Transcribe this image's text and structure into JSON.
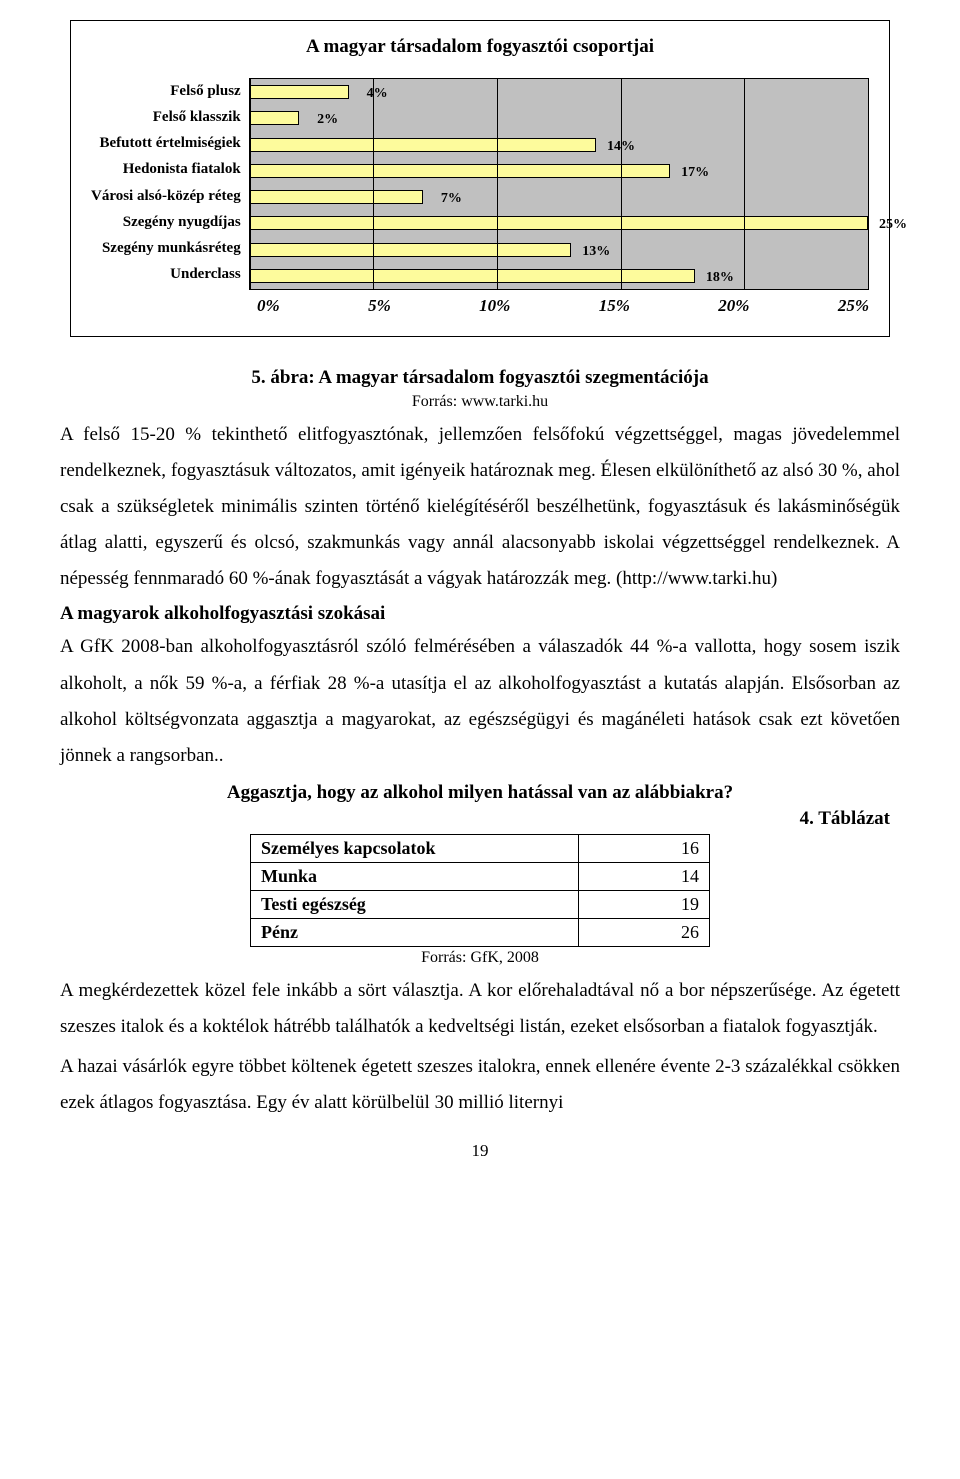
{
  "chart": {
    "title": "A magyar társadalom fogyasztói csoportjai",
    "type": "bar-horizontal",
    "x_max": 25,
    "x_ticks": [
      "0%",
      "5%",
      "10%",
      "15%",
      "20%",
      "25%"
    ],
    "grid_positions_pct": [
      0,
      20,
      40,
      60,
      80,
      100
    ],
    "plot_bg": "#c0c0c0",
    "bar_fill": "#fdfb9c",
    "bar_border": "#000000",
    "categories": [
      {
        "label": "Felső plusz",
        "value": 4,
        "value_label": "4%"
      },
      {
        "label": "Felső klasszik",
        "value": 2,
        "value_label": "2%"
      },
      {
        "label": "Befutott értelmiségiek",
        "value": 14,
        "value_label": "14%"
      },
      {
        "label": "Hedonista fiatalok",
        "value": 17,
        "value_label": "17%"
      },
      {
        "label": "Városi alsó-közép réteg",
        "value": 7,
        "value_label": "7%"
      },
      {
        "label": "Szegény nyugdíjas",
        "value": 25,
        "value_label": "25%"
      },
      {
        "label": "Szegény munkásréteg",
        "value": 13,
        "value_label": "13%"
      },
      {
        "label": "Underclass",
        "value": 18,
        "value_label": "18%"
      }
    ]
  },
  "figure_caption": "5. ábra: A magyar társadalom fogyasztói szegmentációja",
  "figure_source": "Forrás: www.tarki.hu",
  "para1": "A felső 15-20 % tekinthető elitfogyasztónak, jellemzően felsőfokú végzettséggel, magas jövedelemmel rendelkeznek, fogyasztásuk változatos, amit igényeik határoznak meg. Élesen elkülöníthető az alsó 30 %, ahol csak a szükségletek minimális szinten történő kielégítéséről beszélhetünk, fogyasztásuk és lakásminőségük átlag alatti, egyszerű és olcsó, szakmunkás vagy annál alacsonyabb iskolai végzettséggel rendelkeznek. A népesség fennmaradó 60 %-ának fogyasztását a vágyak határozzák meg. (http://www.tarki.hu)",
  "subhead1": "A magyarok alkoholfogyasztási szokásai",
  "para2": "A GfK 2008-ban alkoholfogyasztásról szóló felmérésében a válaszadók 44 %-a vallotta, hogy sosem iszik alkoholt, a nők 59 %-a, a férfiak 28 %-a utasítja el az alkoholfogyasztást a kutatás alapján. Elsősorban az alkohol költségvonzata aggasztja a magyarokat, az egészségügyi és magánéleti hatások csak ezt követően jönnek a rangsorban..",
  "question": "Aggasztja, hogy az alkohol milyen hatással van az alábbiakra?",
  "table_caption": "4. Táblázat",
  "table": {
    "rows": [
      {
        "label": "Személyes kapcsolatok",
        "value": "16"
      },
      {
        "label": "Munka",
        "value": "14"
      },
      {
        "label": "Testi egészség",
        "value": "19"
      },
      {
        "label": "Pénz",
        "value": "26"
      }
    ]
  },
  "table_source": "Forrás: GfK, 2008",
  "para3": "A megkérdezettek közel fele inkább a sört választja. A kor előrehaladtával nő a bor népszerűsége. Az égetett szeszes italok és a koktélok hátrébb találhatók a kedveltségi listán, ezeket elsősorban a fiatalok fogyasztják.",
  "para4": "A hazai vásárlók egyre többet költenek égetett szeszes italokra, ennek ellenére évente 2-3 százalékkal csökken ezek átlagos fogyasztása. Egy év alatt körülbelül 30 millió liternyi",
  "page_number": "19"
}
